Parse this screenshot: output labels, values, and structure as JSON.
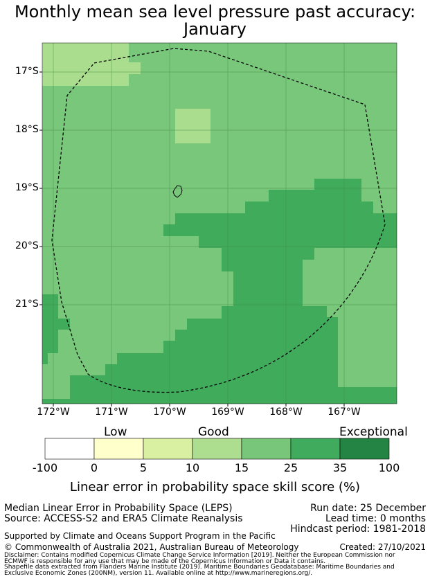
{
  "title": {
    "line1": "Monthly mean sea level pressure past accuracy:",
    "line2": "January"
  },
  "map": {
    "lat_labels": [
      "17°S",
      "18°S",
      "19°S",
      "20°S",
      "21°S"
    ],
    "lon_labels": [
      "172°W",
      "171°W",
      "170°W",
      "169°W",
      "168°W",
      "167°W"
    ],
    "region_outline": "Niue EEZ (200NM)",
    "dominant_category": "15-25",
    "colors": {
      "c5_15": "#abdd8e",
      "c15_25": "#79c77b",
      "c25_35": "#40ab5b",
      "grid": "#3e8a45"
    }
  },
  "legend": {
    "categories": [
      "Low",
      "Good",
      "Exceptional"
    ],
    "ticks": [
      "-100",
      "0",
      "5",
      "10",
      "15",
      "25",
      "35",
      "100"
    ],
    "colors": [
      "#ffffff",
      "#ffffcc",
      "#d9f0a3",
      "#addd8e",
      "#78c679",
      "#41ab5d",
      "#238443"
    ],
    "label": "Linear error in probability space skill score (%)"
  },
  "footer": {
    "method": "Median Linear Error in Probability Space (LEPS)",
    "source": "Source: ACCESS-S2 and ERA5 Climate Reanalysis",
    "run_date": "Run date: 25 December",
    "lead_time": "Lead time: 0 months",
    "hindcast": "Hindcast period: 1981-2018",
    "support": "Supported by Climate and Oceans Support Program in the Pacific",
    "copyright": "© Commonwealth of Australia 2021, Australian Bureau of Meteorology",
    "created": "Created: 27/10/2021",
    "disclaimer1": "Disclaimer: Contains modified Copernicus Climate Change Service Information [2019]. Neither the European Commission nor",
    "disclaimer2": "ECMWF is responsible for any use that may be made of the Copernicus Information or Data it contains.",
    "disclaimer3": "Shapefile data extracted from Flanders Marine Institute (2019). Maritime Boundaries Geodatabase: Maritime Boundaries and",
    "disclaimer4": "Exclusive Economic Zones (200NM), version 11. Available online at http://www.marineregions.org/."
  }
}
